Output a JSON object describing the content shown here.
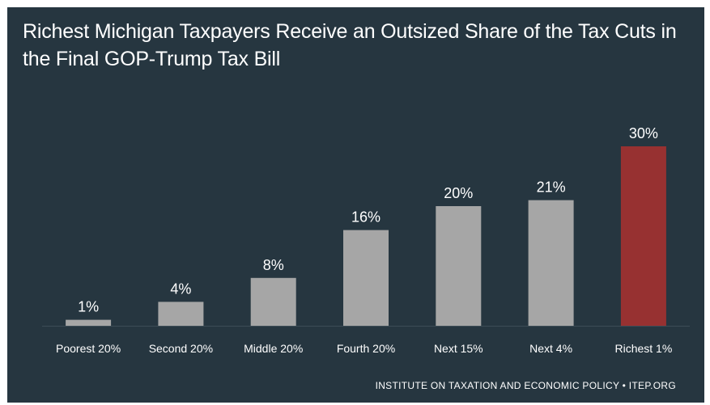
{
  "chart_data": {
    "type": "bar",
    "title": "Richest Michigan Taxpayers Receive an Outsized Share of the Tax Cuts in the Final GOP-Trump Tax Bill",
    "categories": [
      "Poorest 20%",
      "Second 20%",
      "Middle 20%",
      "Fourth 20%",
      "Next 15%",
      "Next 4%",
      "Richest 1%"
    ],
    "values": [
      1,
      4,
      8,
      16,
      20,
      21,
      30
    ],
    "data_labels": [
      "1%",
      "4%",
      "8%",
      "16%",
      "20%",
      "21%",
      "30%"
    ],
    "unit": "%",
    "ylim": [
      0,
      30
    ],
    "grid": false,
    "legend": "none",
    "bar_colors": [
      "#a6a6a6",
      "#a6a6a6",
      "#a6a6a6",
      "#a6a6a6",
      "#a6a6a6",
      "#a6a6a6",
      "#973131"
    ]
  },
  "colors": {
    "background": "#263640",
    "bar_default": "#a6a6a6",
    "bar_highlight": "#973131",
    "baseline": "#3c4c56",
    "text": "#ffffff"
  },
  "source": "INSTITUTE ON TAXATION AND ECONOMIC POLICY • ITEP.ORG"
}
